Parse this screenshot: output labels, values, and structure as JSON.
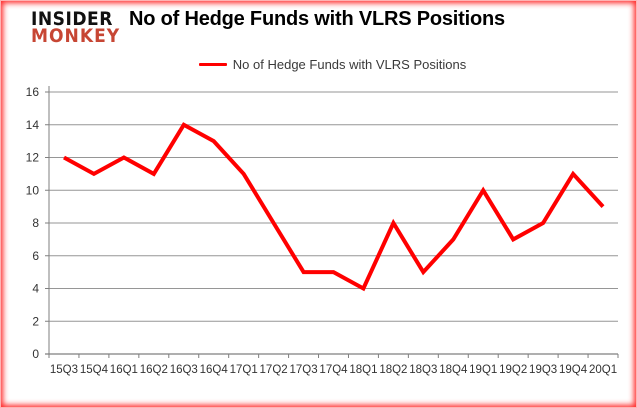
{
  "logo": {
    "line1": "INSIDER",
    "line2": "MONKEY",
    "accent_color": "#c74634"
  },
  "title": "No of Hedge Funds with VLRS Positions",
  "legend": {
    "label": "No of Hedge Funds with VLRS Positions"
  },
  "frame_color": "#ff0000",
  "chart_data": {
    "type": "line",
    "title": "No of Hedge Funds with VLRS Positions",
    "categories": [
      "15Q3",
      "15Q4",
      "16Q1",
      "16Q2",
      "16Q3",
      "16Q4",
      "17Q1",
      "17Q2",
      "17Q3",
      "17Q4",
      "18Q1",
      "18Q2",
      "18Q3",
      "18Q4",
      "19Q1",
      "19Q2",
      "19Q3",
      "19Q4",
      "20Q1"
    ],
    "series": [
      {
        "name": "No of Hedge Funds with VLRS Positions",
        "color": "#ff0000",
        "values": [
          12,
          11,
          12,
          11,
          14,
          13,
          11,
          8,
          5,
          5,
          4,
          8,
          5,
          7,
          10,
          7,
          8,
          11,
          9
        ]
      }
    ],
    "xlabel": "",
    "ylabel": "",
    "ylim": [
      0,
      16
    ],
    "ytick_interval": 2,
    "grid": true,
    "legend_position": "top-center",
    "axis_color": "#7f7f7f",
    "grid_color": "#969696",
    "tick_label_color": "#333333"
  }
}
